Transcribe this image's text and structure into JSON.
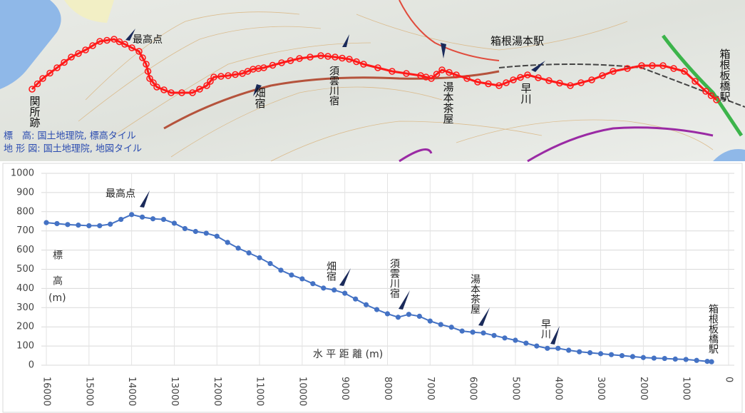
{
  "map": {
    "labels": [
      "関所跡",
      "最高点",
      "畑宿",
      "須雲川宿",
      "湯本茶屋",
      "早川",
      "箱根湯本駅",
      "箱根板橋駅"
    ],
    "credits": [
      "標　高: 国土地理院, 標高タイル",
      "地 形 図: 国土地理院, 地図タイル"
    ]
  },
  "chart_data": {
    "type": "line",
    "xlabel": "水 平 距 離 (m)",
    "ylabel_lines": [
      "標",
      "高",
      "(m)"
    ],
    "annotations": [
      "最高点",
      "畑宿",
      "須雲川宿",
      "湯本茶屋",
      "早川",
      "箱根板橋駅"
    ],
    "x": [
      16000,
      15750,
      15500,
      15250,
      15000,
      14750,
      14500,
      14250,
      14000,
      13750,
      13500,
      13250,
      13000,
      12750,
      12500,
      12250,
      12000,
      11750,
      11500,
      11250,
      11000,
      10750,
      10500,
      10250,
      10000,
      9750,
      9500,
      9250,
      9000,
      8750,
      8500,
      8250,
      8000,
      7750,
      7500,
      7250,
      7000,
      6750,
      6500,
      6250,
      6000,
      5750,
      5500,
      5250,
      5000,
      4750,
      4500,
      4250,
      4000,
      3750,
      3500,
      3250,
      3000,
      2750,
      2500,
      2250,
      2000,
      1750,
      1500,
      1250,
      1000,
      750,
      500,
      400
    ],
    "series": [
      {
        "name": "標高",
        "color": "#4472c4",
        "values": [
          743,
          738,
          733,
          730,
          727,
          727,
          735,
          760,
          785,
          772,
          763,
          760,
          740,
          712,
          697,
          688,
          672,
          640,
          610,
          585,
          560,
          530,
          495,
          470,
          450,
          425,
          402,
          392,
          375,
          345,
          315,
          290,
          268,
          250,
          265,
          255,
          230,
          212,
          198,
          178,
          172,
          168,
          155,
          142,
          130,
          115,
          100,
          88,
          88,
          78,
          70,
          65,
          60,
          55,
          50,
          45,
          40,
          37,
          35,
          32,
          30,
          25,
          20,
          18
        ]
      }
    ],
    "xlim": [
      16000,
      0
    ],
    "xticks": [
      16000,
      15000,
      14000,
      13000,
      12000,
      11000,
      10000,
      9000,
      8000,
      7000,
      6000,
      5000,
      4000,
      3000,
      2000,
      1000,
      0
    ],
    "ylim": [
      0,
      1000
    ],
    "yticks": [
      0,
      100,
      200,
      300,
      400,
      500,
      600,
      700,
      800,
      900,
      1000
    ],
    "grid": true
  }
}
